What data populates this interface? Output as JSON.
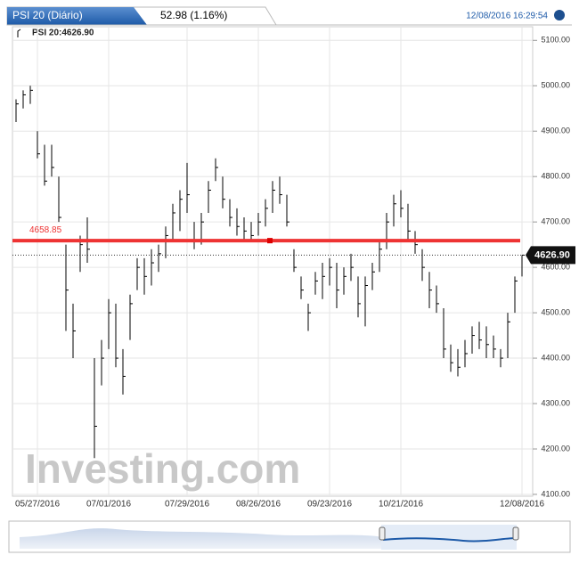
{
  "chart_data": {
    "type": "ohlc",
    "title": "PSI 20 (Diário)",
    "change": "52.98 (1.16%)",
    "timestamp": "12/08/2016 16:29:54",
    "legend": "PSI 20:4626.90",
    "watermark": "Investing.com",
    "color": "#000000",
    "categories": [
      null,
      null,
      null,
      "05/27/2016",
      null,
      null,
      null,
      null,
      null,
      null,
      null,
      null,
      null,
      "07/01/2016",
      null,
      null,
      null,
      null,
      null,
      null,
      null,
      null,
      null,
      null,
      "07/29/2016",
      null,
      null,
      null,
      null,
      null,
      null,
      null,
      null,
      null,
      "08/26/2016",
      null,
      null,
      null,
      null,
      null,
      null,
      null,
      null,
      null,
      "09/23/2016",
      null,
      null,
      null,
      null,
      null,
      null,
      null,
      null,
      null,
      "10/21/2016",
      null,
      null,
      null,
      null,
      null,
      null,
      null,
      null,
      null,
      null,
      null,
      null,
      null,
      null,
      null,
      null,
      "12/08/2016"
    ],
    "high": [
      4970,
      4990,
      5000,
      4900,
      4870,
      4870,
      4800,
      4650,
      4520,
      4670,
      4710,
      4400,
      4440,
      4530,
      4520,
      4420,
      4540,
      4620,
      4620,
      4640,
      4650,
      4690,
      4740,
      4770,
      4830,
      4700,
      4720,
      4790,
      4840,
      4800,
      4750,
      4730,
      4710,
      4700,
      4720,
      4750,
      4790,
      4800,
      4760,
      4640,
      4580,
      4520,
      4590,
      4610,
      4620,
      4610,
      4600,
      4630,
      4580,
      4580,
      4610,
      4660,
      4720,
      4760,
      4770,
      4740,
      4680,
      4640,
      4590,
      4560,
      4510,
      4430,
      4420,
      4440,
      4470,
      4480,
      4470,
      4450,
      4420,
      4500,
      4580,
      4627
    ],
    "low": [
      4920,
      4950,
      4960,
      4840,
      4780,
      4800,
      4700,
      4460,
      4400,
      4590,
      4610,
      4180,
      4340,
      4420,
      4380,
      4320,
      4440,
      4550,
      4540,
      4560,
      4590,
      4620,
      4660,
      4680,
      4720,
      4640,
      4650,
      4720,
      4790,
      4730,
      4690,
      4670,
      4660,
      4660,
      4670,
      4690,
      4720,
      4740,
      4690,
      4590,
      4530,
      4460,
      4540,
      4530,
      4560,
      4510,
      4540,
      4570,
      4490,
      4470,
      4550,
      4590,
      4640,
      4690,
      4710,
      4660,
      4630,
      4570,
      4510,
      4500,
      4400,
      4370,
      4360,
      4380,
      4410,
      4420,
      4400,
      4400,
      4380,
      4400,
      4500,
      4580
    ],
    "close": [
      4960,
      4980,
      4990,
      4850,
      4790,
      4820,
      4710,
      4550,
      4460,
      4650,
      4640,
      4250,
      4400,
      4500,
      4400,
      4360,
      4520,
      4600,
      4580,
      4610,
      4630,
      4670,
      4720,
      4750,
      4760,
      4660,
      4700,
      4770,
      4820,
      4750,
      4710,
      4690,
      4680,
      4670,
      4700,
      4730,
      4770,
      4760,
      4700,
      4600,
      4550,
      4500,
      4570,
      4580,
      4600,
      4550,
      4580,
      4600,
      4520,
      4560,
      4590,
      4640,
      4700,
      4740,
      4730,
      4680,
      4650,
      4600,
      4550,
      4520,
      4420,
      4390,
      4380,
      4410,
      4450,
      4440,
      4430,
      4420,
      4400,
      4480,
      4570,
      4626.9
    ],
    "last": {
      "value": 4626.9,
      "label": "4626.90"
    },
    "hline": {
      "value": 4658.85,
      "label": "4658.85",
      "color": "#ee3333"
    },
    "ylim": [
      4096,
      5130
    ],
    "yticks": [
      {
        "value": 4100,
        "label": "4100.00"
      },
      {
        "value": 4200,
        "label": "4200.00"
      },
      {
        "value": 4300,
        "label": "4300.00"
      },
      {
        "value": 4400,
        "label": "4400.00"
      },
      {
        "value": 4500,
        "label": "4500.00"
      },
      {
        "value": 4600,
        "label": "4600.00"
      },
      {
        "value": 4700,
        "label": "4700.00"
      },
      {
        "value": 4800,
        "label": "4800.00"
      },
      {
        "value": 4900,
        "label": "4900.00"
      },
      {
        "value": 5000,
        "label": "5000.00"
      },
      {
        "value": 5100,
        "label": "5100.00"
      }
    ],
    "grid": true
  }
}
